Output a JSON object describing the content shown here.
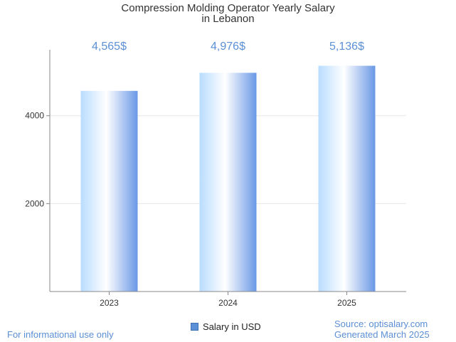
{
  "chart_data": {
    "type": "bar",
    "title_line1": "Compression Molding Operator Yearly Salary",
    "title_line2": "in Lebanon",
    "categories": [
      "2023",
      "2024",
      "2025"
    ],
    "values": [
      4565,
      4976,
      5136
    ],
    "value_labels": [
      "4,565$",
      "4,976$",
      "5,136$"
    ],
    "y_ticks": [
      2000,
      4000
    ],
    "ylim": [
      0,
      5500
    ],
    "legend": "Salary in USD",
    "grid": true
  },
  "footer": {
    "disclaimer": "For informational use only",
    "source": "Source: optisalary.com",
    "generated": "Generated March 2025"
  },
  "colors": {
    "bar_light": "#ffffff",
    "bar_mid": "#b9dcff",
    "bar_dark": "#6a98e6",
    "value_label": "#5b8fd6",
    "axis": "#888888",
    "grid": "#e6e6e6"
  }
}
